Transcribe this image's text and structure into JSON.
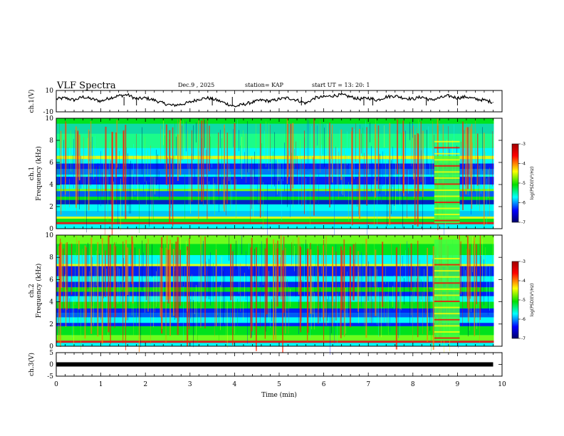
{
  "header": {
    "title": "VLF Spectra",
    "date": "Dec.9 , 2025",
    "station": "station= KAP",
    "start": "start  UT =   13: 20: 1"
  },
  "colorbar": {
    "label": "log(PSD)(V²/Hz)",
    "ticks": [
      "-3",
      "-4",
      "-5",
      "-6",
      "-7"
    ],
    "colors": [
      "#b00000",
      "#ff0000",
      "#ffff00",
      "#00e000",
      "#00ffff",
      "#0000ff",
      "#00007a"
    ]
  },
  "chart_data": [
    {
      "type": "line",
      "name": "ch1-waveform",
      "ylabel": "ch.1(V)",
      "ylim": [
        -10,
        10
      ],
      "ytick_labels": [
        "10",
        "-10"
      ],
      "xlim": [
        0,
        10
      ],
      "x": [
        0.0,
        0.2,
        0.4,
        0.6,
        0.8,
        1.0,
        1.2,
        1.4,
        1.6,
        1.8,
        2.0,
        2.2,
        2.4,
        2.6,
        2.8,
        3.0,
        3.2,
        3.4,
        3.6,
        3.8,
        4.0,
        4.2,
        4.4,
        4.6,
        4.8,
        5.0,
        5.2,
        5.4,
        5.6,
        5.8,
        6.0,
        6.2,
        6.4,
        6.6,
        6.8,
        7.0,
        7.2,
        7.4,
        7.6,
        7.8,
        8.0,
        8.2,
        8.4,
        8.6,
        8.8,
        9.0,
        9.2,
        9.4,
        9.6,
        9.8
      ],
      "values": [
        2,
        3,
        1,
        4,
        2,
        0,
        3,
        5,
        6,
        2,
        3,
        1,
        -2,
        -4,
        -3,
        -1,
        2,
        3,
        1,
        -2,
        -5,
        -3,
        -1,
        1,
        0,
        2,
        3,
        1,
        -2,
        3,
        4,
        5,
        6,
        4,
        2,
        3,
        1,
        4,
        5,
        3,
        2,
        4,
        1,
        3,
        5,
        3,
        4,
        2,
        1,
        -1
      ],
      "color": "#000000"
    },
    {
      "type": "heatmap",
      "name": "ch1-spectrogram",
      "ylabel": "ch.1 Frequency (kHz)",
      "ylim": [
        0,
        10
      ],
      "ytick_labels": [
        "0",
        "2",
        "4",
        "6",
        "8",
        "10"
      ],
      "xlim": [
        0,
        10
      ]
    },
    {
      "type": "heatmap",
      "name": "ch2-spectrogram",
      "ylabel": "ch.2 Frequency (kHz)",
      "ylim": [
        0,
        10
      ],
      "ytick_labels": [
        "0",
        "2",
        "4",
        "6",
        "8",
        "10"
      ],
      "xlim": [
        0,
        10
      ]
    },
    {
      "type": "line",
      "name": "ch3-waveform",
      "ylabel": "ch.3(V)",
      "ylim": [
        -5,
        5
      ],
      "ytick_labels": [
        "5",
        "0",
        "-5"
      ],
      "xlim": [
        0,
        10
      ],
      "x": [
        0,
        9.8
      ],
      "values": [
        0,
        0
      ],
      "color": "#000000"
    }
  ],
  "xaxis": {
    "label": "Time  (min)",
    "tick_labels": [
      "0",
      "1",
      "2",
      "3",
      "4",
      "5",
      "6",
      "7",
      "8",
      "9",
      "10"
    ]
  }
}
